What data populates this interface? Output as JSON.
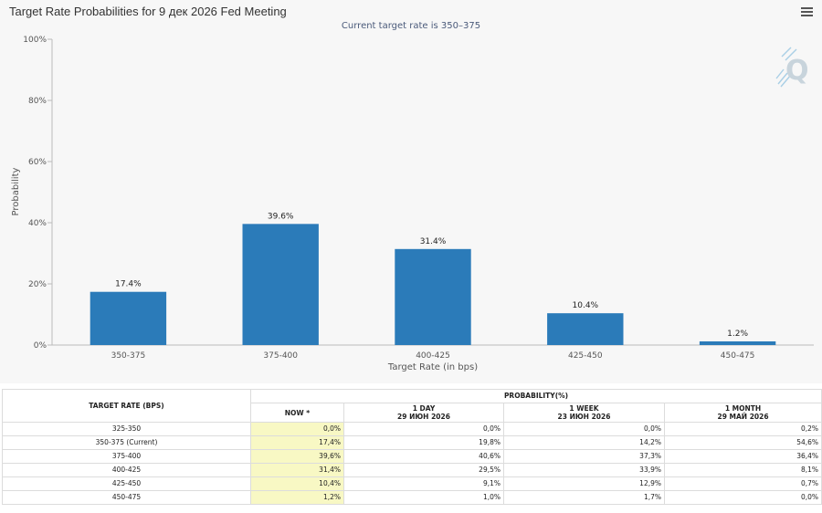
{
  "title": "Target Rate Probabilities for 9 дек 2026 Fed Meeting",
  "subtitle": "Current target rate is 350–375",
  "chart_data": {
    "type": "bar",
    "categories": [
      "350-375",
      "375-400",
      "400-425",
      "425-450",
      "450-475"
    ],
    "values": [
      17.4,
      39.6,
      31.4,
      10.4,
      1.2
    ],
    "data_labels": [
      "17.4%",
      "39.6%",
      "31.4%",
      "10.4%",
      "1.2%"
    ],
    "xlabel": "Target Rate (in bps)",
    "ylabel": "Probability",
    "ylim": [
      0,
      100
    ],
    "yticks": [
      "0%",
      "20%",
      "40%",
      "60%",
      "80%",
      "100%"
    ],
    "ytick_values": [
      0,
      20,
      40,
      60,
      80,
      100
    ],
    "bar_color": "#2b7bb9",
    "grid": false
  },
  "table": {
    "target_rate_header": "TARGET RATE (BPS)",
    "probability_header": "PROBABILITY(%)",
    "columns": [
      {
        "label": "NOW *",
        "date": ""
      },
      {
        "label": "1 DAY",
        "date": "29 ИЮН 2026"
      },
      {
        "label": "1 WEEK",
        "date": "23 ИЮН 2026"
      },
      {
        "label": "1 MONTH",
        "date": "29 МАЙ 2026"
      }
    ],
    "rows": [
      {
        "rate": "325-350",
        "values": [
          "0,0%",
          "0,0%",
          "0,0%",
          "0,2%"
        ]
      },
      {
        "rate": "350-375 (Current)",
        "values": [
          "17,4%",
          "19,8%",
          "14,2%",
          "54,6%"
        ]
      },
      {
        "rate": "375-400",
        "values": [
          "39,6%",
          "40,6%",
          "37,3%",
          "36,4%"
        ]
      },
      {
        "rate": "400-425",
        "values": [
          "31,4%",
          "29,5%",
          "33,9%",
          "8,1%"
        ]
      },
      {
        "rate": "425-450",
        "values": [
          "10,4%",
          "9,1%",
          "12,9%",
          "0,7%"
        ]
      },
      {
        "rate": "450-475",
        "values": [
          "1,2%",
          "1,0%",
          "1,7%",
          "0,0%"
        ]
      }
    ]
  }
}
